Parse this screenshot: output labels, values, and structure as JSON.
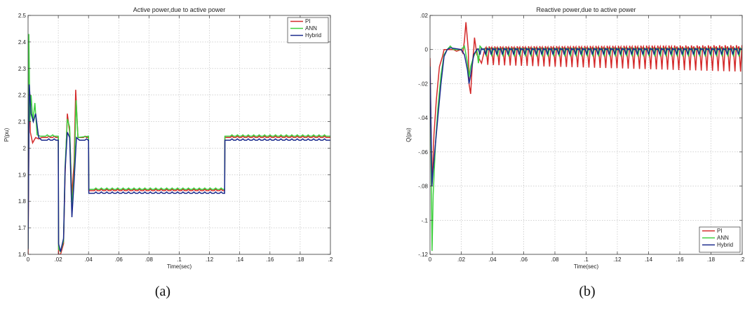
{
  "chart_data": [
    {
      "type": "line",
      "title": "Active power,due to active power",
      "xlabel": "Time(sec)",
      "ylabel": "P(pu)",
      "xlim": [
        0,
        0.2
      ],
      "ylim": [
        1.6,
        2.5
      ],
      "xticks": [
        0,
        0.02,
        0.04,
        0.06,
        0.08,
        0.1,
        0.12,
        0.14,
        0.16,
        0.18,
        0.2
      ],
      "yticks": [
        1.6,
        1.7,
        1.8,
        1.9,
        2,
        2.1,
        2.2,
        2.3,
        2.4,
        2.5
      ],
      "grid": true,
      "legend": "top-right",
      "caption": "(a)",
      "series": [
        {
          "name": "PI",
          "color": "#d42a2a",
          "points": [
            [
              0,
              1.6
            ],
            [
              0.0008,
              2.24
            ],
            [
              0.0015,
              2.06
            ],
            [
              0.003,
              2.02
            ],
            [
              0.005,
              2.04
            ],
            [
              0.007,
              2.035
            ],
            [
              0.009,
              2.04
            ],
            [
              0.02,
              2.04
            ],
            [
              0.0202,
              1.6
            ],
            [
              0.0215,
              1.6
            ],
            [
              0.0235,
              1.64
            ],
            [
              0.0245,
              1.9
            ],
            [
              0.026,
              2.13
            ],
            [
              0.0275,
              2.06
            ],
            [
              0.029,
              1.82
            ],
            [
              0.0305,
              1.95
            ],
            [
              0.0315,
              2.22
            ],
            [
              0.033,
              2.04
            ],
            [
              0.04,
              2.04
            ],
            [
              0.0402,
              1.84
            ],
            [
              0.13,
              1.84
            ],
            [
              0.1302,
              2.04
            ],
            [
              0.2,
              2.04
            ]
          ]
        },
        {
          "name": "ANN",
          "color": "#3dcf3d",
          "points": [
            [
              0,
              1.62
            ],
            [
              0.0005,
              2.43
            ],
            [
              0.0012,
              2.1
            ],
            [
              0.002,
              2.2
            ],
            [
              0.0032,
              2.1
            ],
            [
              0.0045,
              2.17
            ],
            [
              0.006,
              2.05
            ],
            [
              0.008,
              2.045
            ],
            [
              0.02,
              2.045
            ],
            [
              0.0202,
              1.62
            ],
            [
              0.0215,
              1.61
            ],
            [
              0.0235,
              1.65
            ],
            [
              0.0245,
              1.93
            ],
            [
              0.026,
              2.11
            ],
            [
              0.0275,
              2.08
            ],
            [
              0.029,
              1.78
            ],
            [
              0.0305,
              1.9
            ],
            [
              0.0318,
              2.18
            ],
            [
              0.033,
              2.04
            ],
            [
              0.04,
              2.045
            ],
            [
              0.0402,
              1.845
            ],
            [
              0.13,
              1.845
            ],
            [
              0.1302,
              2.045
            ],
            [
              0.2,
              2.045
            ]
          ]
        },
        {
          "name": "Hybrid",
          "color": "#1a2a8c",
          "points": [
            [
              0,
              1.62
            ],
            [
              0.0008,
              2.24
            ],
            [
              0.002,
              2.13
            ],
            [
              0.0035,
              2.1
            ],
            [
              0.005,
              2.13
            ],
            [
              0.007,
              2.04
            ],
            [
              0.009,
              2.03
            ],
            [
              0.02,
              2.03
            ],
            [
              0.0202,
              1.64
            ],
            [
              0.0215,
              1.61
            ],
            [
              0.0235,
              1.66
            ],
            [
              0.0245,
              1.92
            ],
            [
              0.026,
              2.06
            ],
            [
              0.0275,
              2.04
            ],
            [
              0.029,
              1.74
            ],
            [
              0.0305,
              1.88
            ],
            [
              0.032,
              2.04
            ],
            [
              0.034,
              2.03
            ],
            [
              0.04,
              2.03
            ],
            [
              0.0402,
              1.83
            ],
            [
              0.13,
              1.83
            ],
            [
              0.1302,
              2.03
            ],
            [
              0.2,
              2.03
            ]
          ]
        }
      ]
    },
    {
      "type": "line",
      "title": "Reactive power,due to active power",
      "xlabel": "Time(sec)",
      "ylabel": "Q(pu)",
      "xlim": [
        0,
        0.2
      ],
      "ylim": [
        -0.12,
        0.02
      ],
      "xticks": [
        0,
        0.02,
        0.04,
        0.06,
        0.08,
        0.1,
        0.12,
        0.14,
        0.16,
        0.18,
        0.2
      ],
      "yticks": [
        -0.12,
        -0.1,
        -0.08,
        -0.06,
        -0.04,
        -0.02,
        0,
        0.02
      ],
      "grid": true,
      "legend": "bottom-right",
      "caption": "(b)",
      "series": [
        {
          "name": "PI",
          "color": "#d42a2a",
          "points": [
            [
              0,
              -0.005
            ],
            [
              0.0012,
              -0.08
            ],
            [
              0.0025,
              -0.05
            ],
            [
              0.004,
              -0.03
            ],
            [
              0.006,
              -0.01
            ],
            [
              0.008,
              -0.004
            ],
            [
              0.009,
              0.0
            ],
            [
              0.011,
              0.0
            ],
            [
              0.013,
              0.0
            ],
            [
              0.015,
              0.0
            ],
            [
              0.017,
              -0.001
            ],
            [
              0.02,
              0.0
            ],
            [
              0.021,
              -0.002
            ],
            [
              0.022,
              0.005
            ],
            [
              0.023,
              0.016
            ],
            [
              0.0245,
              0.0
            ],
            [
              0.025,
              -0.02
            ],
            [
              0.026,
              -0.026
            ],
            [
              0.027,
              -0.01
            ],
            [
              0.028,
              0.0
            ],
            [
              0.0285,
              0.007
            ],
            [
              0.03,
              -0.003
            ],
            [
              0.033,
              -0.008
            ],
            [
              0.035,
              0.0
            ],
            [
              0.2,
              0.0
            ]
          ],
          "ripple_amplitude": [
            0.009,
            0.013
          ],
          "ripple_period": 0.0036
        },
        {
          "name": "ANN",
          "color": "#3dcf3d",
          "points": [
            [
              0,
              -0.01
            ],
            [
              0.0008,
              -0.075
            ],
            [
              0.0013,
              -0.118
            ],
            [
              0.002,
              -0.085
            ],
            [
              0.0035,
              -0.055
            ],
            [
              0.005,
              -0.035
            ],
            [
              0.007,
              -0.015
            ],
            [
              0.009,
              -0.003
            ],
            [
              0.011,
              0.0
            ],
            [
              0.013,
              0.002
            ],
            [
              0.015,
              0.0
            ],
            [
              0.02,
              0.0
            ],
            [
              0.022,
              0.002
            ],
            [
              0.024,
              -0.008
            ],
            [
              0.025,
              -0.016
            ],
            [
              0.026,
              -0.01
            ],
            [
              0.028,
              -0.004
            ],
            [
              0.03,
              0.0
            ],
            [
              0.031,
              -0.008
            ],
            [
              0.032,
              0.002
            ],
            [
              0.034,
              0.0
            ],
            [
              0.2,
              0.0
            ]
          ],
          "ripple_amplitude": [
            0.004,
            0.004
          ],
          "ripple_period": 0.0036
        },
        {
          "name": "Hybrid",
          "color": "#1a2a8c",
          "points": [
            [
              0,
              -0.01
            ],
            [
              0.0012,
              -0.08
            ],
            [
              0.002,
              -0.07
            ],
            [
              0.0035,
              -0.055
            ],
            [
              0.005,
              -0.04
            ],
            [
              0.007,
              -0.02
            ],
            [
              0.009,
              -0.004
            ],
            [
              0.011,
              0.0
            ],
            [
              0.013,
              0.001
            ],
            [
              0.02,
              0.0
            ],
            [
              0.022,
              -0.003
            ],
            [
              0.024,
              -0.012
            ],
            [
              0.025,
              -0.02
            ],
            [
              0.026,
              -0.015
            ],
            [
              0.028,
              -0.003
            ],
            [
              0.03,
              0.0
            ],
            [
              0.2,
              0.0
            ]
          ],
          "ripple_amplitude": [
            0.003,
            0.003
          ],
          "ripple_period": 0.0036
        }
      ]
    }
  ]
}
